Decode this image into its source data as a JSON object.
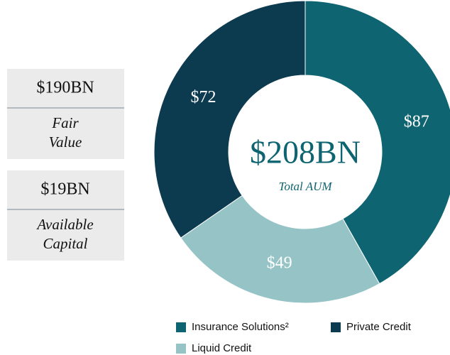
{
  "chart_data": {
    "type": "pie",
    "center_label": "$208BN",
    "center_sublabel": "Total AUM",
    "series": [
      {
        "name": "Insurance Solutions²",
        "color": "#0e6470",
        "values": [
          87
        ],
        "value_labels": [
          "$87"
        ]
      },
      {
        "name": "Liquid Credit",
        "color": "#96c4c6",
        "values": [
          49
        ],
        "value_labels": [
          "$49"
        ]
      },
      {
        "name": "Private Credit",
        "color": "#0c3a4e",
        "values": [
          72
        ],
        "value_labels": [
          "$72"
        ]
      }
    ],
    "stats": [
      {
        "value": "$190BN",
        "label": "Fair Value"
      },
      {
        "value": "$19BN",
        "label": "Available Capital"
      }
    ]
  }
}
